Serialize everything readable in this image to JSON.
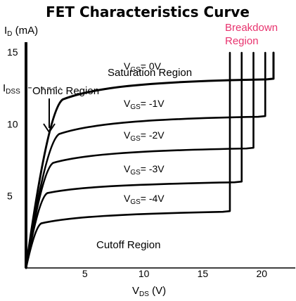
{
  "chart_data": {
    "type": "line",
    "title": "FET Characteristics Curve",
    "ylabel": {
      "main": "I",
      "sub": "D",
      "unit": " (mA)"
    },
    "xlabel": {
      "main": "V",
      "sub": "DS",
      "unit": " (V)"
    },
    "xlim": [
      0,
      21
    ],
    "ylim": [
      0,
      15
    ],
    "x_ticks": [
      "5",
      "10",
      "15",
      "20"
    ],
    "y_ticks": [
      "15",
      "10",
      "5"
    ],
    "idss_label": {
      "main": "I",
      "sub": "DSS"
    },
    "idss_value": 13.0,
    "region_labels": {
      "ohmic": "Ohmic Region",
      "saturation": "Saturation Region",
      "cutoff": "Cutoff Region",
      "breakdown": "Breakdown Region"
    },
    "series": [
      {
        "name": "V_GS = 0V",
        "label_pre": "V",
        "label_sub": "GS",
        "label_post": "= 0V",
        "knee_x": 3.1,
        "knee_y": 11.7,
        "sat_end_y": 13.1,
        "breakdown_x": 21.0
      },
      {
        "name": "V_GS = -1V",
        "label_pre": "V",
        "label_sub": "GS",
        "label_post": "= -1V",
        "knee_x": 2.8,
        "knee_y": 9.3,
        "sat_end_y": 10.5,
        "breakdown_x": 20.3
      },
      {
        "name": "V_GS = -2V",
        "label_pre": "V",
        "label_sub": "GS",
        "label_post": "= -2V",
        "knee_x": 2.3,
        "knee_y": 7.3,
        "sat_end_y": 8.3,
        "breakdown_x": 19.3
      },
      {
        "name": "V_GS = -3V",
        "label_pre": "V",
        "label_sub": "GS",
        "label_post": "= -3V",
        "knee_x": 1.8,
        "knee_y": 5.2,
        "sat_end_y": 5.95,
        "breakdown_x": 18.3
      },
      {
        "name": "V_GS = -4V",
        "label_pre": "V",
        "label_sub": "GS",
        "label_post": "= -4V",
        "knee_x": 1.3,
        "knee_y": 3.1,
        "sat_end_y": 3.9,
        "breakdown_x": 17.3
      }
    ],
    "grid": false,
    "colors": {
      "curves": "#000000",
      "breakdown_text": "#e8336e"
    }
  }
}
